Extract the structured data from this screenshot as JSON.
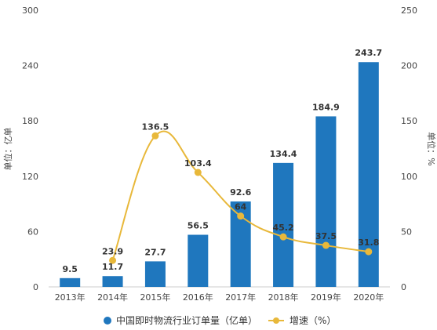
{
  "chart_data": {
    "type": "bar",
    "title": "",
    "categories": [
      "2013年",
      "2014年",
      "2015年",
      "2016年",
      "2017年",
      "2018年",
      "2019年",
      "2020年"
    ],
    "series": [
      {
        "name": "中国即时物流行业订单量（亿单）",
        "type": "bar",
        "axis": "left",
        "color": "#1F77BE",
        "values": [
          9.5,
          11.7,
          27.7,
          56.5,
          92.6,
          134.4,
          184.9,
          243.7
        ],
        "labels": [
          "9.5",
          "11.7",
          "27.7",
          "56.5",
          "92.6",
          "134.4",
          "184.9",
          "243.7"
        ]
      },
      {
        "name": "增速（%）",
        "type": "line",
        "axis": "right",
        "color": "#E8B83A",
        "values": [
          null,
          23.9,
          136.5,
          103.4,
          64,
          45.2,
          37.5,
          31.8
        ],
        "labels": [
          "",
          "23.9",
          "136.5",
          "103.4",
          "64",
          "45.2",
          "37.5",
          "31.8"
        ]
      }
    ],
    "ylabel_left": "单位：亿单",
    "ylabel_right": "单位：%",
    "ylim_left": [
      0,
      300
    ],
    "ylim_right": [
      0,
      250
    ],
    "yticks_left": [
      "0",
      "60",
      "120",
      "180",
      "240",
      "300"
    ],
    "yticks_right": [
      "0",
      "50",
      "100",
      "150",
      "200",
      "250"
    ],
    "grid": false,
    "legend_position": "bottom"
  }
}
